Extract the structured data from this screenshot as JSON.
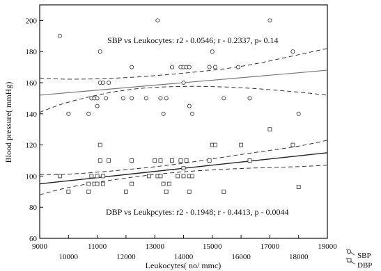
{
  "chart_data": {
    "type": "scatter",
    "xlabel": "Leukocytes( no/ mmc)",
    "ylabel": "Blood pressure( mmHg)",
    "xlim": [
      9000,
      19000
    ],
    "ylim": [
      60,
      210
    ],
    "x_ticks": [
      "9000",
      "10000",
      "11000",
      "12000",
      "13000",
      "14000",
      "15000",
      "16000",
      "17000",
      "18000",
      "19000"
    ],
    "y_ticks": [
      "60",
      "80",
      "100",
      "120",
      "140",
      "160",
      "180",
      "200"
    ],
    "grid": false,
    "legend_position": "bottom-right outside",
    "annotations": {
      "sbp": "SBP vs Leukocytes: r2 - 0.0546; r - 0.2337, p- 0.14",
      "dbp": "DBP vs Leukpcytes: r2 - 0.1948; r - 0.4413, p - 0.0044"
    },
    "series": [
      {
        "name": "SBP",
        "marker": "circle",
        "points": [
          [
            9700,
            190
          ],
          [
            10000,
            140
          ],
          [
            10700,
            140
          ],
          [
            10800,
            150
          ],
          [
            10900,
            150
          ],
          [
            11000,
            145
          ],
          [
            11000,
            150
          ],
          [
            11100,
            180
          ],
          [
            11100,
            160
          ],
          [
            11200,
            160
          ],
          [
            11300,
            150
          ],
          [
            11400,
            160
          ],
          [
            11900,
            150
          ],
          [
            12200,
            170
          ],
          [
            12200,
            150
          ],
          [
            12700,
            150
          ],
          [
            13100,
            200
          ],
          [
            13200,
            150
          ],
          [
            13300,
            140
          ],
          [
            13400,
            150
          ],
          [
            13600,
            170
          ],
          [
            13900,
            170
          ],
          [
            14000,
            170
          ],
          [
            14000,
            160
          ],
          [
            14100,
            170
          ],
          [
            14200,
            170
          ],
          [
            14200,
            145
          ],
          [
            14300,
            140
          ],
          [
            14900,
            170
          ],
          [
            15000,
            180
          ],
          [
            15100,
            170
          ],
          [
            15400,
            150
          ],
          [
            15900,
            170
          ],
          [
            16300,
            150
          ],
          [
            17000,
            200
          ],
          [
            17800,
            180
          ],
          [
            18000,
            140
          ]
        ],
        "fit": [
          [
            9000,
            152
          ],
          [
            19000,
            168
          ]
        ],
        "ci_lower": [
          [
            9000,
            141
          ],
          [
            10000,
            148
          ],
          [
            12000,
            156
          ],
          [
            14000,
            158
          ],
          [
            16000,
            157
          ],
          [
            18000,
            154
          ],
          [
            19000,
            152
          ]
        ],
        "ci_upper": [
          [
            9000,
            163
          ],
          [
            10000,
            162
          ],
          [
            12000,
            163
          ],
          [
            14000,
            166
          ],
          [
            16000,
            170
          ],
          [
            18000,
            178
          ],
          [
            19000,
            182
          ]
        ]
      },
      {
        "name": "DBP",
        "marker": "square",
        "points": [
          [
            9700,
            100
          ],
          [
            10000,
            90
          ],
          [
            10700,
            90
          ],
          [
            10700,
            95
          ],
          [
            10800,
            100
          ],
          [
            10900,
            95
          ],
          [
            11000,
            100
          ],
          [
            11000,
            95
          ],
          [
            11100,
            120
          ],
          [
            11100,
            110
          ],
          [
            11200,
            100
          ],
          [
            11200,
            95
          ],
          [
            11400,
            110
          ],
          [
            12000,
            90
          ],
          [
            12200,
            95
          ],
          [
            12200,
            110
          ],
          [
            12800,
            100
          ],
          [
            13000,
            110
          ],
          [
            13100,
            100
          ],
          [
            13200,
            100
          ],
          [
            13200,
            110
          ],
          [
            13300,
            95
          ],
          [
            13400,
            90
          ],
          [
            13500,
            95
          ],
          [
            13600,
            110
          ],
          [
            13800,
            100
          ],
          [
            13900,
            110
          ],
          [
            14000,
            105
          ],
          [
            14000,
            100
          ],
          [
            14100,
            110
          ],
          [
            14200,
            100
          ],
          [
            14200,
            90
          ],
          [
            14300,
            100
          ],
          [
            14900,
            110
          ],
          [
            15000,
            120
          ],
          [
            15100,
            120
          ],
          [
            15400,
            90
          ],
          [
            16000,
            120
          ],
          [
            16300,
            110
          ],
          [
            17000,
            130
          ],
          [
            17800,
            120
          ],
          [
            18000,
            93
          ]
        ],
        "fit": [
          [
            9000,
            95
          ],
          [
            19000,
            115
          ]
        ],
        "ci_lower": [
          [
            9000,
            88
          ],
          [
            10000,
            93
          ],
          [
            12000,
            99
          ],
          [
            14000,
            103
          ],
          [
            16000,
            105
          ],
          [
            18000,
            106
          ],
          [
            19000,
            107
          ]
        ],
        "ci_upper": [
          [
            9000,
            101
          ],
          [
            10000,
            101
          ],
          [
            12000,
            104
          ],
          [
            14000,
            108
          ],
          [
            16000,
            114
          ],
          [
            18000,
            119
          ],
          [
            19000,
            123
          ]
        ]
      }
    ]
  },
  "legend": [
    {
      "label": "SBP"
    },
    {
      "label": "DBP"
    }
  ]
}
